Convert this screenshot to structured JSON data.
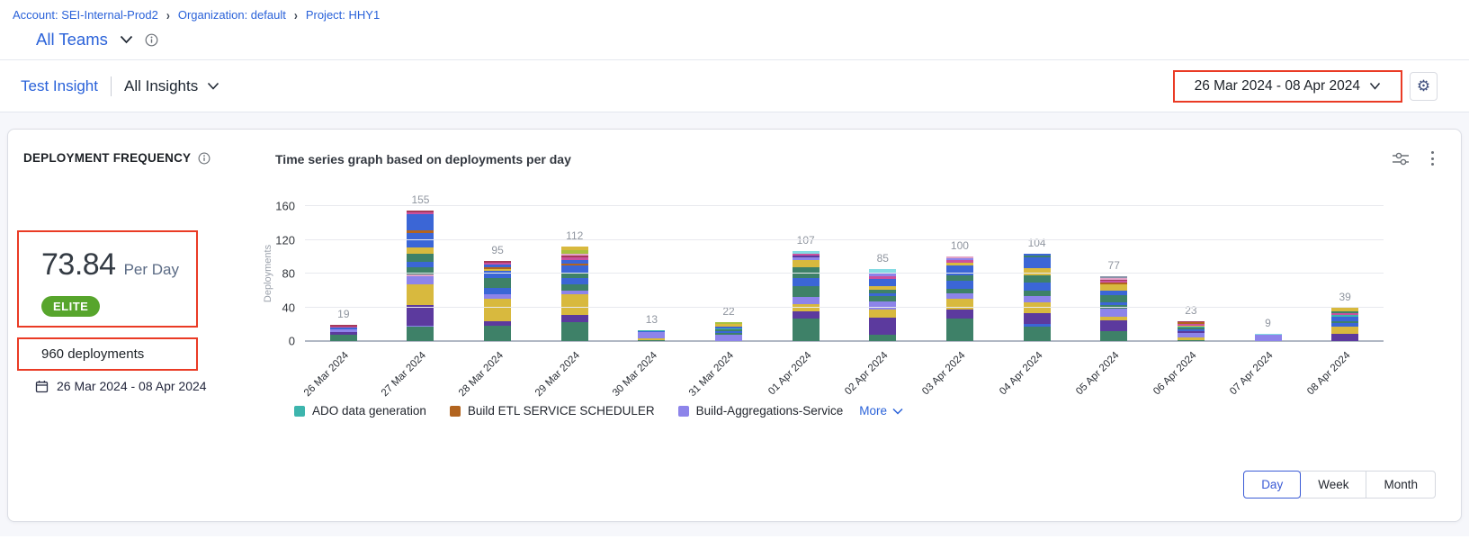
{
  "colors": {
    "link-blue": "#2A62D9",
    "annotation-red": "#EA3B25",
    "badge-green": "#57A52C",
    "selected-blue": "#3B5BD6"
  },
  "breadcrumb": {
    "account": "Account: SEI-Internal-Prod2",
    "organization": "Organization: default",
    "project": "Project: HHY1",
    "separator": "›"
  },
  "team_bar": {
    "team": "All Teams"
  },
  "insight_bar": {
    "insight": "Test Insight",
    "scope": "All Insights"
  },
  "toolbar": {
    "date_range": "26 Mar 2024  -  08 Apr 2024"
  },
  "widget": {
    "title": "DEPLOYMENT FREQUENCY",
    "chart_heading": "Time series graph based on deployments per day",
    "metric": {
      "value": "73.84",
      "unit": "Per Day",
      "badge": "ELITE"
    },
    "total_label": "960 deployments",
    "period": "26 Mar 2024 - 08 Apr 2024",
    "legend_more": "More",
    "granularity": {
      "options": [
        "Day",
        "Week",
        "Month"
      ],
      "selected": "Day"
    }
  },
  "chart_data": {
    "type": "bar",
    "stacked": true,
    "title": "Time series graph based on deployments per day",
    "xlabel": "",
    "ylabel": "Deployments",
    "ylim": [
      0,
      160
    ],
    "yticks": [
      0,
      40,
      80,
      120,
      160
    ],
    "grid": true,
    "legend_position": "bottom",
    "categories": [
      "26 Mar 2024",
      "27 Mar 2024",
      "28 Mar 2024",
      "29 Mar 2024",
      "30 Mar 2024",
      "31 Mar 2024",
      "01 Apr 2024",
      "02 Apr 2024",
      "03 Apr 2024",
      "04 Apr 2024",
      "05 Apr 2024",
      "06 Apr 2024",
      "07 Apr 2024",
      "08 Apr 2024"
    ],
    "values": [
      19,
      155,
      95,
      112,
      13,
      22,
      107,
      85,
      100,
      104,
      77,
      23,
      9,
      39
    ],
    "legend": [
      {
        "label": "ADO data generation",
        "color": "teal"
      },
      {
        "label": "Build ETL SERVICE SCHEDULER",
        "color": "orange"
      },
      {
        "label": "Build-Aggregations-Service",
        "color": "lav"
      }
    ],
    "palette": {
      "green": "#3E8168",
      "purple": "#5C3A9E",
      "gold": "#D8B93E",
      "lav": "#8D84EA",
      "blue": "#3B66D6",
      "teal": "#3DB5AD",
      "orange": "#B2641F",
      "magenta": "#C9519E",
      "crimson": "#A63A5B",
      "lime": "#A8C13F",
      "cyan": "#84DBE3",
      "pink": "#E2A3C7",
      "gray": "#8892A8"
    },
    "stacks": [
      [
        [
          "green",
          8
        ],
        [
          "purple",
          3
        ],
        [
          "lav",
          3
        ],
        [
          "blue",
          2
        ],
        [
          "magenta",
          1.5
        ],
        [
          "crimson",
          1.5
        ]
      ],
      [
        [
          "green",
          17
        ],
        [
          "lav",
          1
        ],
        [
          "purple",
          25
        ],
        [
          "gold",
          24
        ],
        [
          "lav",
          10
        ],
        [
          "pink",
          2
        ],
        [
          "green",
          8
        ],
        [
          "blue",
          7
        ],
        [
          "green",
          9
        ],
        [
          "gold",
          8
        ],
        [
          "blue",
          17
        ],
        [
          "orange",
          3
        ],
        [
          "blue",
          19
        ],
        [
          "magenta",
          3
        ],
        [
          "crimson",
          2
        ]
      ],
      [
        [
          "green",
          18
        ],
        [
          "purple",
          6
        ],
        [
          "gold",
          26
        ],
        [
          "lav",
          5
        ],
        [
          "blue",
          8
        ],
        [
          "green",
          12
        ],
        [
          "blue",
          8
        ],
        [
          "gold",
          2
        ],
        [
          "orange",
          2
        ],
        [
          "blue",
          4
        ],
        [
          "magenta",
          2
        ],
        [
          "crimson",
          2
        ]
      ],
      [
        [
          "green",
          22
        ],
        [
          "purple",
          9
        ],
        [
          "gold",
          24
        ],
        [
          "lav",
          5
        ],
        [
          "green",
          7
        ],
        [
          "blue",
          8
        ],
        [
          "green",
          6
        ],
        [
          "blue",
          9
        ],
        [
          "orange",
          2
        ],
        [
          "blue",
          4
        ],
        [
          "magenta",
          3
        ],
        [
          "crimson",
          2
        ],
        [
          "pink",
          2
        ],
        [
          "lime",
          5
        ],
        [
          "gold",
          4
        ]
      ],
      [
        [
          "green",
          1
        ],
        [
          "gold",
          2
        ],
        [
          "lav",
          8
        ],
        [
          "blue",
          1
        ],
        [
          "teal",
          1
        ]
      ],
      [
        [
          "lav",
          8
        ],
        [
          "green",
          2
        ],
        [
          "blue",
          2
        ],
        [
          "green",
          2
        ],
        [
          "teal",
          1
        ],
        [
          "blue",
          2
        ],
        [
          "gold",
          3
        ],
        [
          "lime",
          2
        ]
      ],
      [
        [
          "green",
          27
        ],
        [
          "purple",
          8
        ],
        [
          "gold",
          9
        ],
        [
          "lav",
          8
        ],
        [
          "green",
          13
        ],
        [
          "blue",
          10
        ],
        [
          "green",
          12
        ],
        [
          "gold",
          9
        ],
        [
          "lav",
          3
        ],
        [
          "purple",
          2
        ],
        [
          "magenta",
          2
        ],
        [
          "cyan",
          4
        ]
      ],
      [
        [
          "green",
          8
        ],
        [
          "purple",
          20
        ],
        [
          "gold",
          9
        ],
        [
          "lav",
          7
        ],
        [
          "lav",
          3
        ],
        [
          "green",
          6
        ],
        [
          "blue",
          4
        ],
        [
          "green",
          4
        ],
        [
          "gold",
          4
        ],
        [
          "blue",
          5
        ],
        [
          "blue",
          4
        ],
        [
          "magenta",
          3
        ],
        [
          "lav",
          3
        ],
        [
          "cyan",
          5
        ]
      ],
      [
        [
          "green",
          27
        ],
        [
          "purple",
          10
        ],
        [
          "gold",
          13
        ],
        [
          "lav",
          7
        ],
        [
          "green",
          5
        ],
        [
          "blue",
          9
        ],
        [
          "green",
          7
        ],
        [
          "blue",
          5
        ],
        [
          "blue",
          7
        ],
        [
          "gold",
          3
        ],
        [
          "magenta",
          3
        ],
        [
          "lav",
          2
        ],
        [
          "pink",
          2
        ]
      ],
      [
        [
          "green",
          17
        ],
        [
          "blue",
          3
        ],
        [
          "purple",
          13
        ],
        [
          "gold",
          13
        ],
        [
          "lav",
          7
        ],
        [
          "green",
          7
        ],
        [
          "blue",
          9
        ],
        [
          "green",
          9
        ],
        [
          "gold",
          8
        ],
        [
          "blue",
          13
        ],
        [
          "green",
          2
        ],
        [
          "blue",
          3
        ]
      ],
      [
        [
          "green",
          12
        ],
        [
          "purple",
          13
        ],
        [
          "gold",
          4
        ],
        [
          "lav",
          6
        ],
        [
          "lav",
          3
        ],
        [
          "green",
          5
        ],
        [
          "blue",
          3
        ],
        [
          "green",
          8
        ],
        [
          "blue",
          6
        ],
        [
          "gold",
          7
        ],
        [
          "orange",
          2
        ],
        [
          "magenta",
          2
        ],
        [
          "crimson",
          2
        ],
        [
          "pink",
          2
        ],
        [
          "gray",
          2
        ]
      ],
      [
        [
          "green",
          1
        ],
        [
          "gold",
          3
        ],
        [
          "lav",
          6
        ],
        [
          "purple",
          2
        ],
        [
          "blue",
          2
        ],
        [
          "green",
          2
        ],
        [
          "teal",
          1
        ],
        [
          "gold",
          1
        ],
        [
          "magenta",
          2
        ],
        [
          "orange",
          2
        ],
        [
          "crimson",
          1
        ]
      ],
      [
        [
          "lav",
          7
        ],
        [
          "cyan",
          2
        ]
      ],
      [
        [
          "purple",
          9
        ],
        [
          "gold",
          8
        ],
        [
          "blue",
          4
        ],
        [
          "green",
          3
        ],
        [
          "blue",
          5
        ],
        [
          "teal",
          2
        ],
        [
          "magenta",
          2
        ],
        [
          "green",
          2
        ],
        [
          "gold",
          4
        ]
      ]
    ]
  }
}
